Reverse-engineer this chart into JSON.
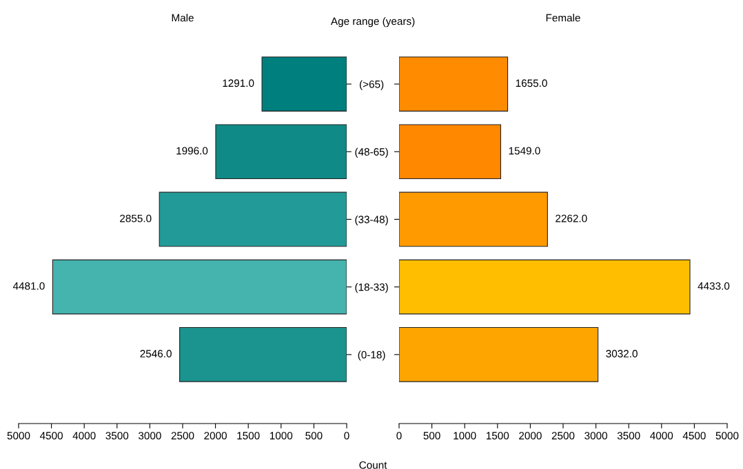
{
  "chart_data": [
    {
      "type": "bar",
      "orientation": "horizontal",
      "title": "Male",
      "ylabel": "Age range (years)",
      "xlabel": "Count",
      "categories": [
        "(>65)",
        "(48-65)",
        "(33-48)",
        "(18-33)",
        "(0-18)"
      ],
      "values": [
        1291,
        1996,
        2855,
        4481,
        2546
      ],
      "colors": [
        "#007f7f",
        "#108a86",
        "#229b98",
        "#45b3ae",
        "#1b9490"
      ],
      "value_labels": [
        "1291.0",
        "1996.0",
        "2855.0",
        "4481.0",
        "2546.0"
      ],
      "xlim": [
        5000,
        0
      ],
      "xticks": [
        5000,
        4500,
        4000,
        3500,
        3000,
        2500,
        2000,
        1500,
        1000,
        500,
        0
      ]
    },
    {
      "type": "bar",
      "orientation": "horizontal",
      "title": "Female",
      "values": [
        1655,
        1549,
        2262,
        4433,
        3032
      ],
      "colors": [
        "#ff8c00",
        "#ff8800",
        "#ff9a00",
        "#ffbf00",
        "#ffa500"
      ],
      "value_labels": [
        "1655.0",
        "1549.0",
        "2262.0",
        "4433.0",
        "3032.0"
      ],
      "xlim": [
        0,
        5000
      ],
      "xticks": [
        0,
        500,
        1000,
        1500,
        2000,
        2500,
        3000,
        3500,
        4000,
        4500,
        5000
      ],
      "tick_labels": "x"
    }
  ]
}
